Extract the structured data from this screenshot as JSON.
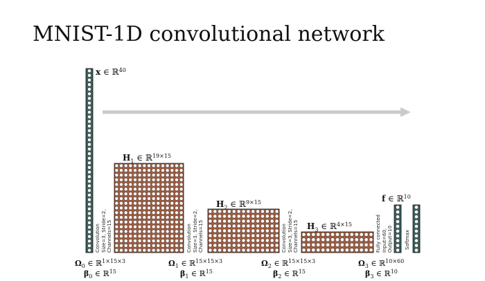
{
  "title": "MNIST-1D convolutional network",
  "layers": {
    "x": {
      "name": "x",
      "space": "∈ ℝ",
      "dims": "40"
    },
    "h1": {
      "name": "H",
      "sub": "1",
      "space": "∈ ℝ",
      "dims": "19×15"
    },
    "h2": {
      "name": "H",
      "sub": "2",
      "space": "∈ ℝ",
      "dims": "9×15"
    },
    "h3": {
      "name": "H",
      "sub": "3",
      "space": "∈ ℝ",
      "dims": "4×15"
    },
    "f": {
      "name": "f",
      "space": "∈ ℝ",
      "dims": "10"
    }
  },
  "ops": {
    "conv1": [
      "Convolution",
      "Size=3, Stride=2,",
      "Channels=15"
    ],
    "conv2": [
      "Convolution",
      "Size=3, Stride=2,",
      "Channels=15"
    ],
    "conv3": [
      "Convolution",
      "Size=3, Stride=2,",
      "Channels=15"
    ],
    "fc": [
      "Fully connected",
      "Input=60,",
      "Output=10"
    ],
    "softmax": [
      "Softmax"
    ]
  },
  "params": {
    "p0": {
      "omega": "Ω",
      "omega_sub": "0",
      "omega_space": "∈ ℝ",
      "omega_dims": "1×15×3",
      "beta": "β",
      "beta_sub": "0",
      "beta_space": "∈ ℝ",
      "beta_dims": "15"
    },
    "p1": {
      "omega": "Ω",
      "omega_sub": "1",
      "omega_space": "∈ ℝ",
      "omega_dims": "15×15×3",
      "beta": "β",
      "beta_sub": "1",
      "beta_space": "∈ ℝ",
      "beta_dims": "15"
    },
    "p2": {
      "omega": "Ω",
      "omega_sub": "2",
      "omega_space": "∈ ℝ",
      "omega_dims": "15×15×3",
      "beta": "β",
      "beta_sub": "2",
      "beta_space": "∈ ℝ",
      "beta_dims": "15"
    },
    "p3": {
      "omega": "Ω",
      "omega_sub": "3",
      "omega_space": "∈ ℝ",
      "omega_dims": "10×60",
      "beta": "β",
      "beta_sub": "3",
      "beta_space": "∈ ℝ",
      "beta_dims": "10"
    }
  },
  "grids": {
    "input": {
      "cols": 1,
      "rows": 40
    },
    "h1": {
      "cols": 19,
      "rows": 15
    },
    "h2": {
      "cols": 9,
      "rows": 15
    },
    "h3": {
      "cols": 4,
      "rows": 15
    },
    "f": {
      "cols": 1,
      "rows": 10
    },
    "softmax": {
      "cols": 1,
      "rows": 10
    }
  },
  "colors": {
    "input_fill": "#3c5f5c",
    "hidden_fill": "#9c5a3e",
    "output_fill": "#3c5f5c",
    "arrow": "#c8ccc9",
    "border": "#111111"
  }
}
